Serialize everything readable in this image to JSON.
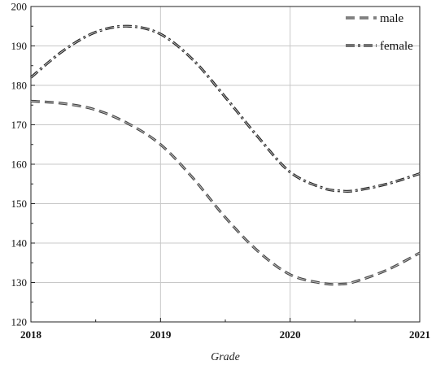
{
  "chart_data": {
    "type": "line",
    "title": "",
    "xlabel": "Grade",
    "ylabel": "",
    "xlim": [
      2018,
      2021
    ],
    "ylim": [
      120,
      200
    ],
    "x_ticks": [
      "2018",
      "2019",
      "2020",
      "2021"
    ],
    "y_ticks": [
      "120",
      "130",
      "140",
      "150",
      "160",
      "170",
      "180",
      "190",
      "200"
    ],
    "grid": true,
    "legend_position": "top-right",
    "series": [
      {
        "name": "male",
        "style": "dashed",
        "color": "#444444",
        "x": [
          2018,
          2018.25,
          2018.5,
          2018.75,
          2019,
          2019.25,
          2019.5,
          2019.75,
          2020,
          2020.25,
          2020.4,
          2020.5,
          2020.75,
          2021
        ],
        "y": [
          176,
          175.4,
          173.8,
          170.3,
          165,
          156.5,
          146.5,
          138,
          132,
          129.8,
          129.6,
          130.2,
          133.2,
          137.5
        ]
      },
      {
        "name": "female",
        "style": "dash-dot",
        "color": "#222222",
        "x": [
          2018,
          2018.25,
          2018.5,
          2018.75,
          2019,
          2019.25,
          2019.5,
          2019.75,
          2020,
          2020.25,
          2020.4,
          2020.5,
          2020.75,
          2021
        ],
        "y": [
          182,
          188.8,
          193.5,
          195,
          193,
          186.5,
          177,
          167,
          158,
          154,
          153.2,
          153.3,
          155,
          157.6
        ]
      }
    ]
  }
}
